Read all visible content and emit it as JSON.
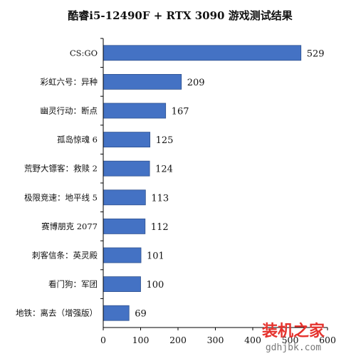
{
  "chart_data": {
    "type": "bar",
    "orientation": "horizontal",
    "title": "酷睿i5-12490F + RTX 3090 游戏测试结果",
    "categories": [
      "CS:GO",
      "彩虹六号：异种",
      "幽灵行动：断点",
      "孤岛惊魂 6",
      "荒野大镖客：救赎 2",
      "极限竞速：地平线 5",
      "赛博朋克 2077",
      "刺客信条：英灵殿",
      "看门狗：军团",
      "地铁：离去（增强版）"
    ],
    "values": [
      529,
      209,
      167,
      125,
      124,
      113,
      112,
      101,
      100,
      69
    ],
    "xlim": [
      0,
      600
    ],
    "xticks": [
      "0",
      "100",
      "200",
      "300",
      "400",
      "500",
      "600"
    ],
    "bar_color": "#4472c4",
    "grid": false
  },
  "watermark": {
    "line1": "装机之家",
    "line2": "gdhjbk.com"
  }
}
